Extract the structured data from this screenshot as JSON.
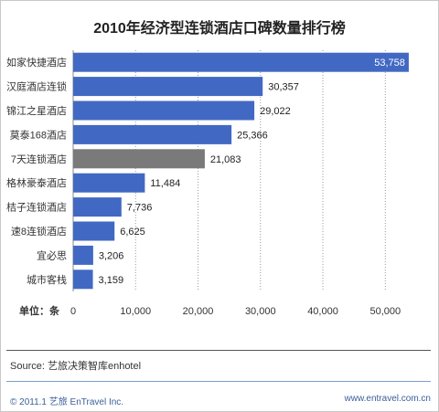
{
  "chart_data": {
    "type": "bar",
    "orientation": "horizontal",
    "title": "2010年经济型连锁酒店口碑数量排行榜",
    "xlabel": "",
    "ylabel": "",
    "unit_label": "单位：条",
    "categories": [
      "如家快捷酒店",
      "汉庭酒店连锁",
      "锦江之星酒店",
      "莫泰168酒店",
      "7天连锁酒店",
      "格林豪泰酒店",
      "桔子连锁酒店",
      "速8连锁酒店",
      "宜必思",
      "城市客栈"
    ],
    "values": [
      53758,
      30357,
      29022,
      25366,
      21083,
      11484,
      7736,
      6625,
      3206,
      3159
    ],
    "value_labels": [
      "53,758",
      "30,357",
      "29,022",
      "25,366",
      "21,083",
      "11,484",
      "7,736",
      "6,625",
      "3,206",
      "3,159"
    ],
    "bar_colors": [
      "#4169c3",
      "#4169c3",
      "#4169c3",
      "#4169c3",
      "#7a7a7a",
      "#4169c3",
      "#4169c3",
      "#4169c3",
      "#4169c3",
      "#4169c3"
    ],
    "xlim": [
      0,
      54500
    ],
    "xticks": [
      0,
      10000,
      20000,
      30000,
      40000,
      50000
    ],
    "xtick_labels": [
      "0",
      "10,000",
      "20,000",
      "30,000",
      "40,000",
      "50,000"
    ],
    "grid": "vertical dotted lines at each x tick"
  },
  "source": "Source: 艺旅决策智库enhotel",
  "footer": {
    "copyright": "© 2011.1  艺旅 EnTravel Inc.",
    "website": "www.entravel.com.cn"
  }
}
